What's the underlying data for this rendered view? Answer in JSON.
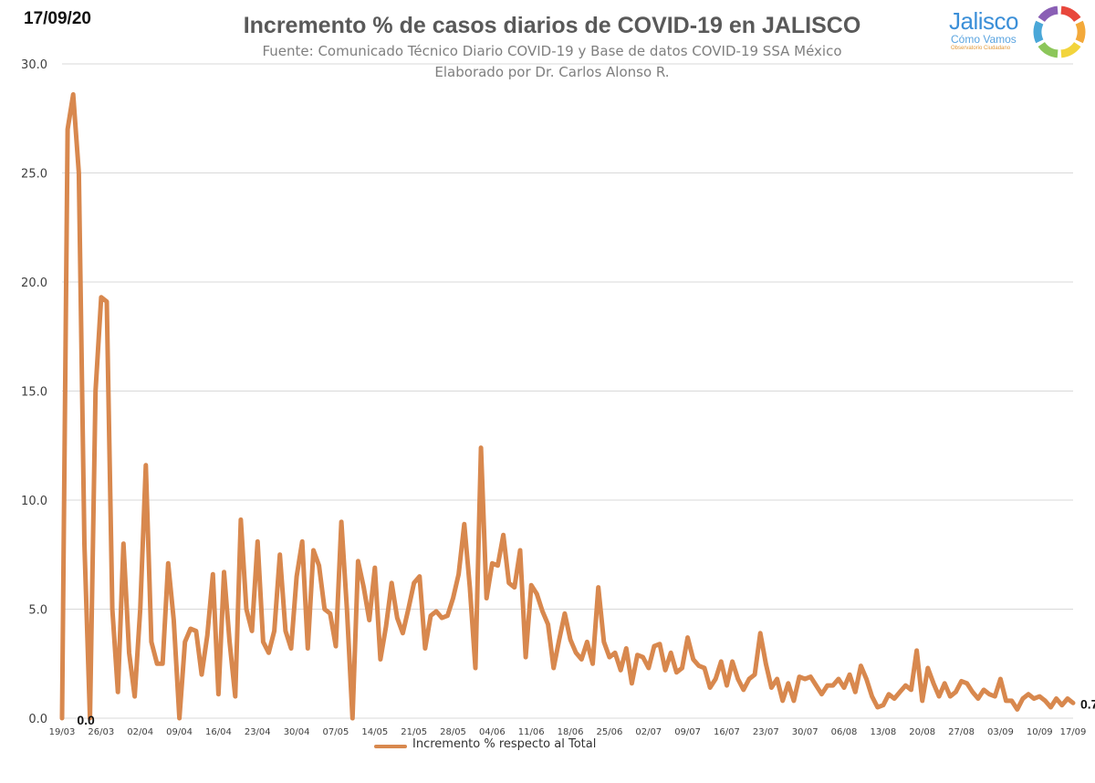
{
  "header": {
    "date_stamp": "17/09/20",
    "title": "Incremento % de casos diarios de COVID-19 en JALISCO",
    "source_line": "Fuente: Comunicado Técnico Diario COVID-19 y Base de datos COVID-19 SSA México",
    "author_line": "Elaborado por Dr. Carlos Alonso R."
  },
  "logo": {
    "wordmark": "Jalisco",
    "subtitle": "Cómo Vamos",
    "tagline": "Observatorio Ciudadano",
    "ring_colors": [
      "#e8473c",
      "#f3a93a",
      "#f2d43c",
      "#8cc65a",
      "#4aa7d8",
      "#8a5fb5"
    ]
  },
  "colors": {
    "line": "#d8884e",
    "grid": "#d9d9d9",
    "axis_text": "#404040"
  },
  "chart_data": {
    "type": "line",
    "title": "Incremento % de casos diarios de COVID-19 en JALISCO",
    "xlabel": "",
    "ylabel": "",
    "ylim": [
      0,
      30
    ],
    "yticks": [
      "0.0",
      "5.0",
      "10.0",
      "15.0",
      "20.0",
      "25.0",
      "30.0"
    ],
    "grid": true,
    "legend_position": "bottom",
    "x_start": "19/03",
    "x_end": "17/09",
    "x_tick_labels": [
      "19/03",
      "26/03",
      "02/04",
      "09/04",
      "16/04",
      "23/04",
      "30/04",
      "07/05",
      "14/05",
      "21/05",
      "28/05",
      "04/06",
      "11/06",
      "18/06",
      "25/06",
      "02/07",
      "09/07",
      "16/07",
      "23/07",
      "30/07",
      "06/08",
      "13/08",
      "20/08",
      "27/08",
      "03/09",
      "10/09",
      "17/09"
    ],
    "series": [
      {
        "name": "Incremento % respecto al Total",
        "values": [
          0.0,
          27.0,
          28.6,
          25.0,
          8.0,
          0.0,
          15.0,
          19.3,
          19.1,
          5.0,
          1.2,
          8.0,
          3.0,
          1.0,
          5.0,
          11.6,
          3.5,
          2.5,
          2.5,
          7.1,
          4.5,
          0.0,
          3.5,
          4.1,
          4.0,
          2.0,
          3.8,
          6.6,
          1.1,
          6.7,
          3.5,
          1.0,
          9.1,
          5.0,
          4.0,
          8.1,
          3.5,
          3.0,
          4.0,
          7.5,
          4.0,
          3.2,
          6.5,
          8.1,
          3.2,
          7.7,
          7.0,
          5.0,
          4.8,
          3.3,
          9.0,
          5.0,
          0.0,
          7.2,
          6.0,
          4.5,
          6.9,
          2.7,
          4.2,
          6.2,
          4.6,
          3.9,
          5.0,
          6.2,
          6.5,
          3.2,
          4.7,
          4.9,
          4.6,
          4.7,
          5.5,
          6.6,
          8.9,
          6.0,
          2.3,
          12.4,
          5.5,
          7.1,
          7.0,
          8.4,
          6.2,
          6.0,
          7.7,
          2.8,
          6.1,
          5.7,
          4.9,
          4.3,
          2.3,
          3.6,
          4.8,
          3.6,
          3.0,
          2.7,
          3.5,
          2.5,
          6.0,
          3.5,
          2.8,
          3.0,
          2.2,
          3.2,
          1.6,
          2.9,
          2.8,
          2.3,
          3.3,
          3.4,
          2.2,
          3.0,
          2.1,
          2.3,
          3.7,
          2.7,
          2.4,
          2.3,
          1.4,
          1.8,
          2.6,
          1.5,
          2.6,
          1.8,
          1.3,
          1.8,
          2.0,
          3.9,
          2.5,
          1.4,
          1.8,
          0.8,
          1.6,
          0.8,
          1.9,
          1.8,
          1.9,
          1.5,
          1.1,
          1.5,
          1.5,
          1.8,
          1.4,
          2.0,
          1.2,
          2.4,
          1.8,
          1.0,
          0.5,
          0.6,
          1.1,
          0.9,
          1.2,
          1.5,
          1.3,
          3.1,
          0.8,
          2.3,
          1.6,
          1.0,
          1.6,
          1.0,
          1.2,
          1.7,
          1.6,
          1.2,
          0.9,
          1.3,
          1.1,
          1.0,
          1.8,
          0.8,
          0.8,
          0.4,
          0.9,
          1.1,
          0.9,
          1.0,
          0.8,
          0.5,
          0.9,
          0.6,
          0.9,
          0.7
        ],
        "first_label": "0.0",
        "last_label": "0.7"
      }
    ]
  }
}
